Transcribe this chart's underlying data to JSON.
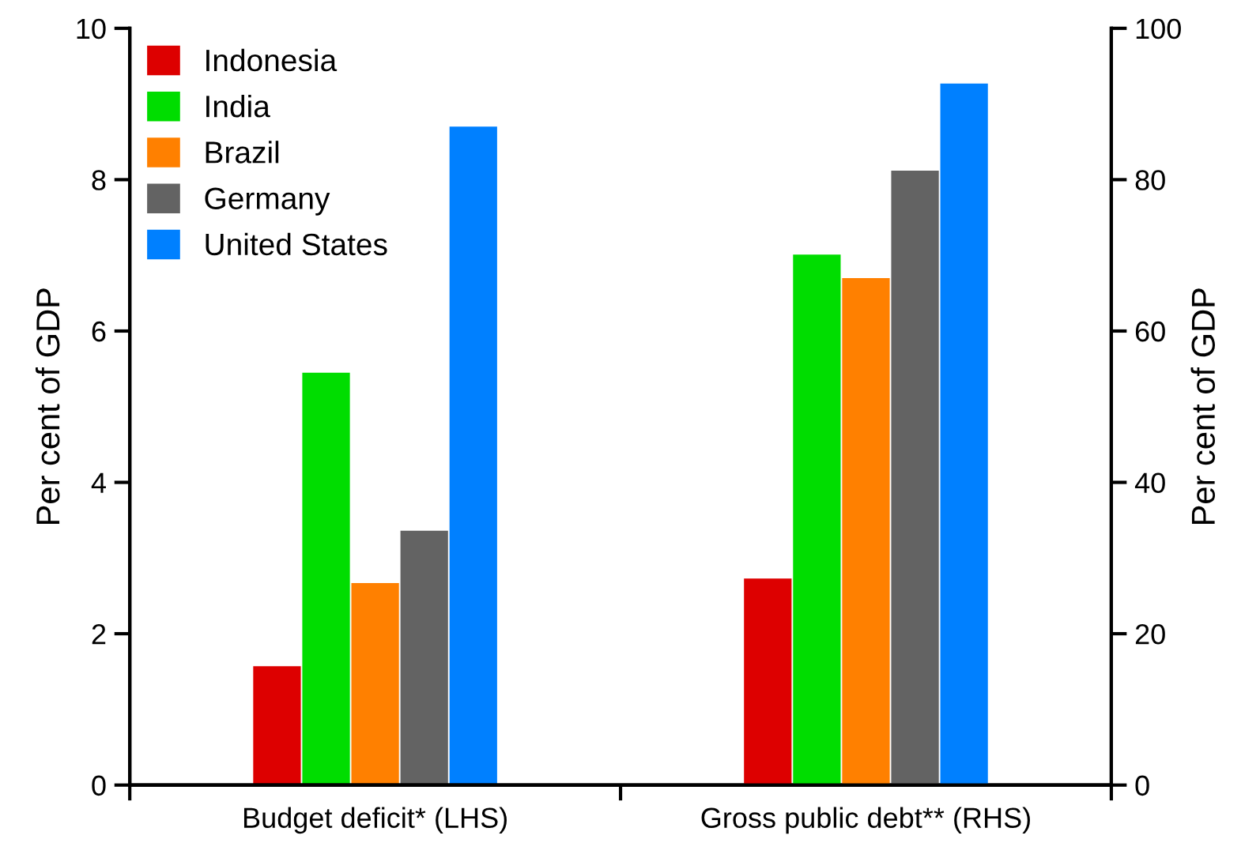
{
  "chart_data": {
    "type": "bar",
    "categories": [
      "Budget deficit* (LHS)",
      "Gross public debt** (RHS)"
    ],
    "ylabel": "Per cent of GDP",
    "y2label": "Per cent of GDP",
    "ylim": [
      0,
      10
    ],
    "yticks": [
      0,
      2,
      4,
      6,
      8,
      10
    ],
    "y2lim": [
      0,
      100
    ],
    "y2ticks": [
      0,
      20,
      40,
      60,
      80,
      100
    ],
    "legend": "top left",
    "grid": false,
    "series": [
      {
        "name": "Indonesia",
        "color": "#dd0000",
        "values": [
          1.57,
          null
        ]
      },
      {
        "name": "India",
        "color": "#00dd00",
        "values": [
          5.45,
          null
        ]
      },
      {
        "name": "Brazil",
        "color": "#ff8000",
        "values": [
          2.67,
          null
        ]
      },
      {
        "name": "Germany",
        "color": "#636363",
        "values": [
          3.36,
          null
        ]
      },
      {
        "name": "United States",
        "color": "#0080ff",
        "values": [
          8.7,
          null
        ]
      },
      {
        "color": "#dd0000",
        "axis": "y2",
        "values": [
          null,
          27.3
        ]
      },
      {
        "color": "#00dd00",
        "axis": "y2",
        "values": [
          null,
          70.1
        ]
      },
      {
        "color": "#ff8000",
        "axis": "y2",
        "values": [
          null,
          67.0
        ]
      },
      {
        "color": "#636363",
        "axis": "y2",
        "values": [
          null,
          81.2
        ]
      },
      {
        "color": "#0080ff",
        "axis": "y2",
        "values": [
          null,
          92.7
        ]
      }
    ]
  }
}
